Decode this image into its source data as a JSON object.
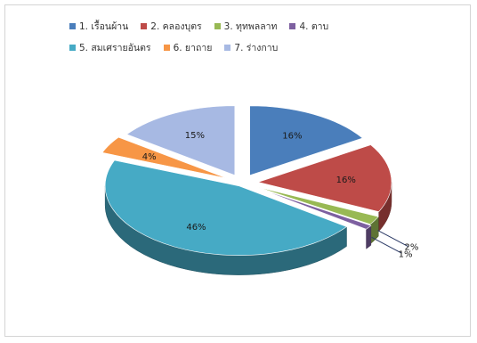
{
  "chart_data": {
    "type": "pie",
    "title": "",
    "categories": [
      "1. เรื้อนผ้าน",
      "2. คลองบุตร",
      "3. ทุทพลลาท",
      "4. ตาบ",
      "5. สมเศรายอันตร",
      "6. ยาถาย",
      "7. ร่างกาบ"
    ],
    "values": [
      16,
      16,
      2,
      1,
      46,
      4,
      15
    ],
    "value_labels": [
      "16%",
      "16%",
      "2%",
      "1%",
      "46%",
      "4%",
      "15%"
    ],
    "colors": [
      "#4a7ebb",
      "#be4b48",
      "#98b954",
      "#7d60a0",
      "#46aac5",
      "#f79646",
      "#a7b9e3"
    ],
    "legend_position": "top",
    "exploded": true,
    "style": "3d"
  }
}
